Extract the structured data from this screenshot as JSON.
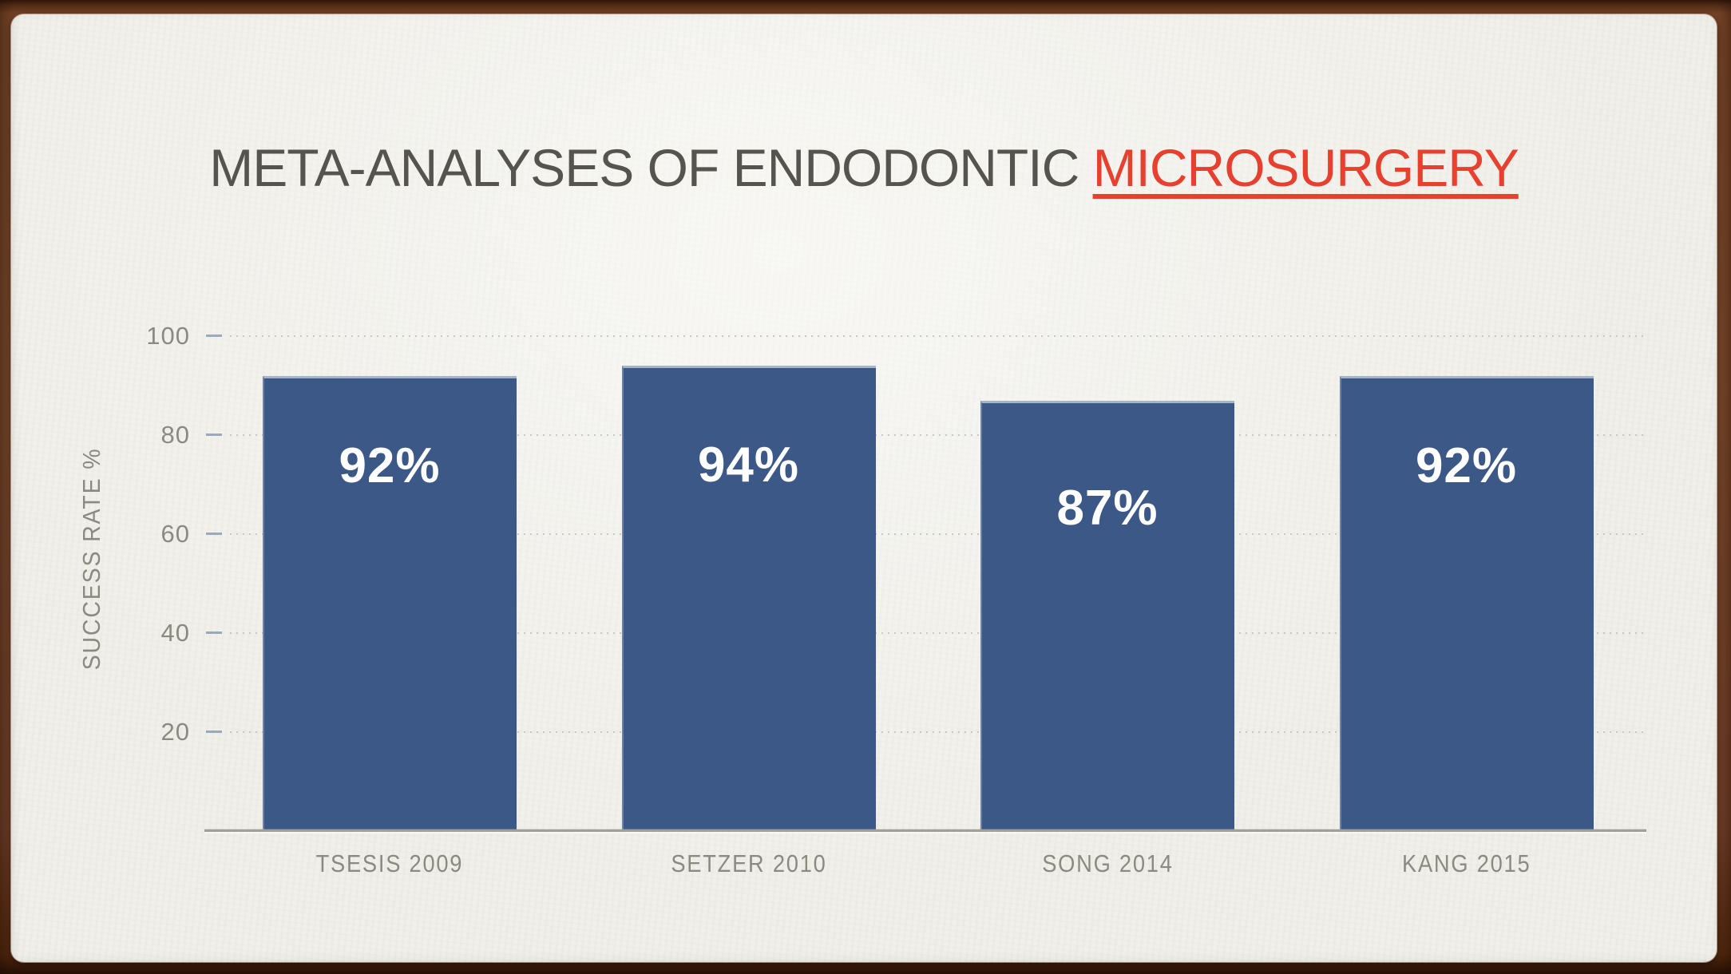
{
  "title": {
    "prefix": "META-ANALYSES OF ENDODONTIC ",
    "highlight": "MICROSURGERY"
  },
  "chart_data": {
    "type": "bar",
    "title": "META-ANALYSES OF ENDODONTIC MICROSURGERY",
    "categories": [
      "TSESIS 2009",
      "SETZER 2010",
      "SONG 2014",
      "KANG 2015"
    ],
    "values": [
      92,
      94,
      87,
      92
    ],
    "data_labels": [
      "92%",
      "94%",
      "87%",
      "92%"
    ],
    "xlabel": "",
    "ylabel": "SUCCESS RATE %",
    "ylim": [
      0,
      100
    ],
    "yticks": [
      20,
      40,
      60,
      80,
      100
    ],
    "grid": "horizontal-dotted",
    "legend": "none",
    "bar_color": "#3b5886",
    "data_label_color": "#ffffff",
    "title_color": "#56544e",
    "title_highlight_color": "#e8402f",
    "axis_text_color": "#8b8a81",
    "frame_color": "#7c4a2c",
    "slide_background": "#f0efe9"
  }
}
